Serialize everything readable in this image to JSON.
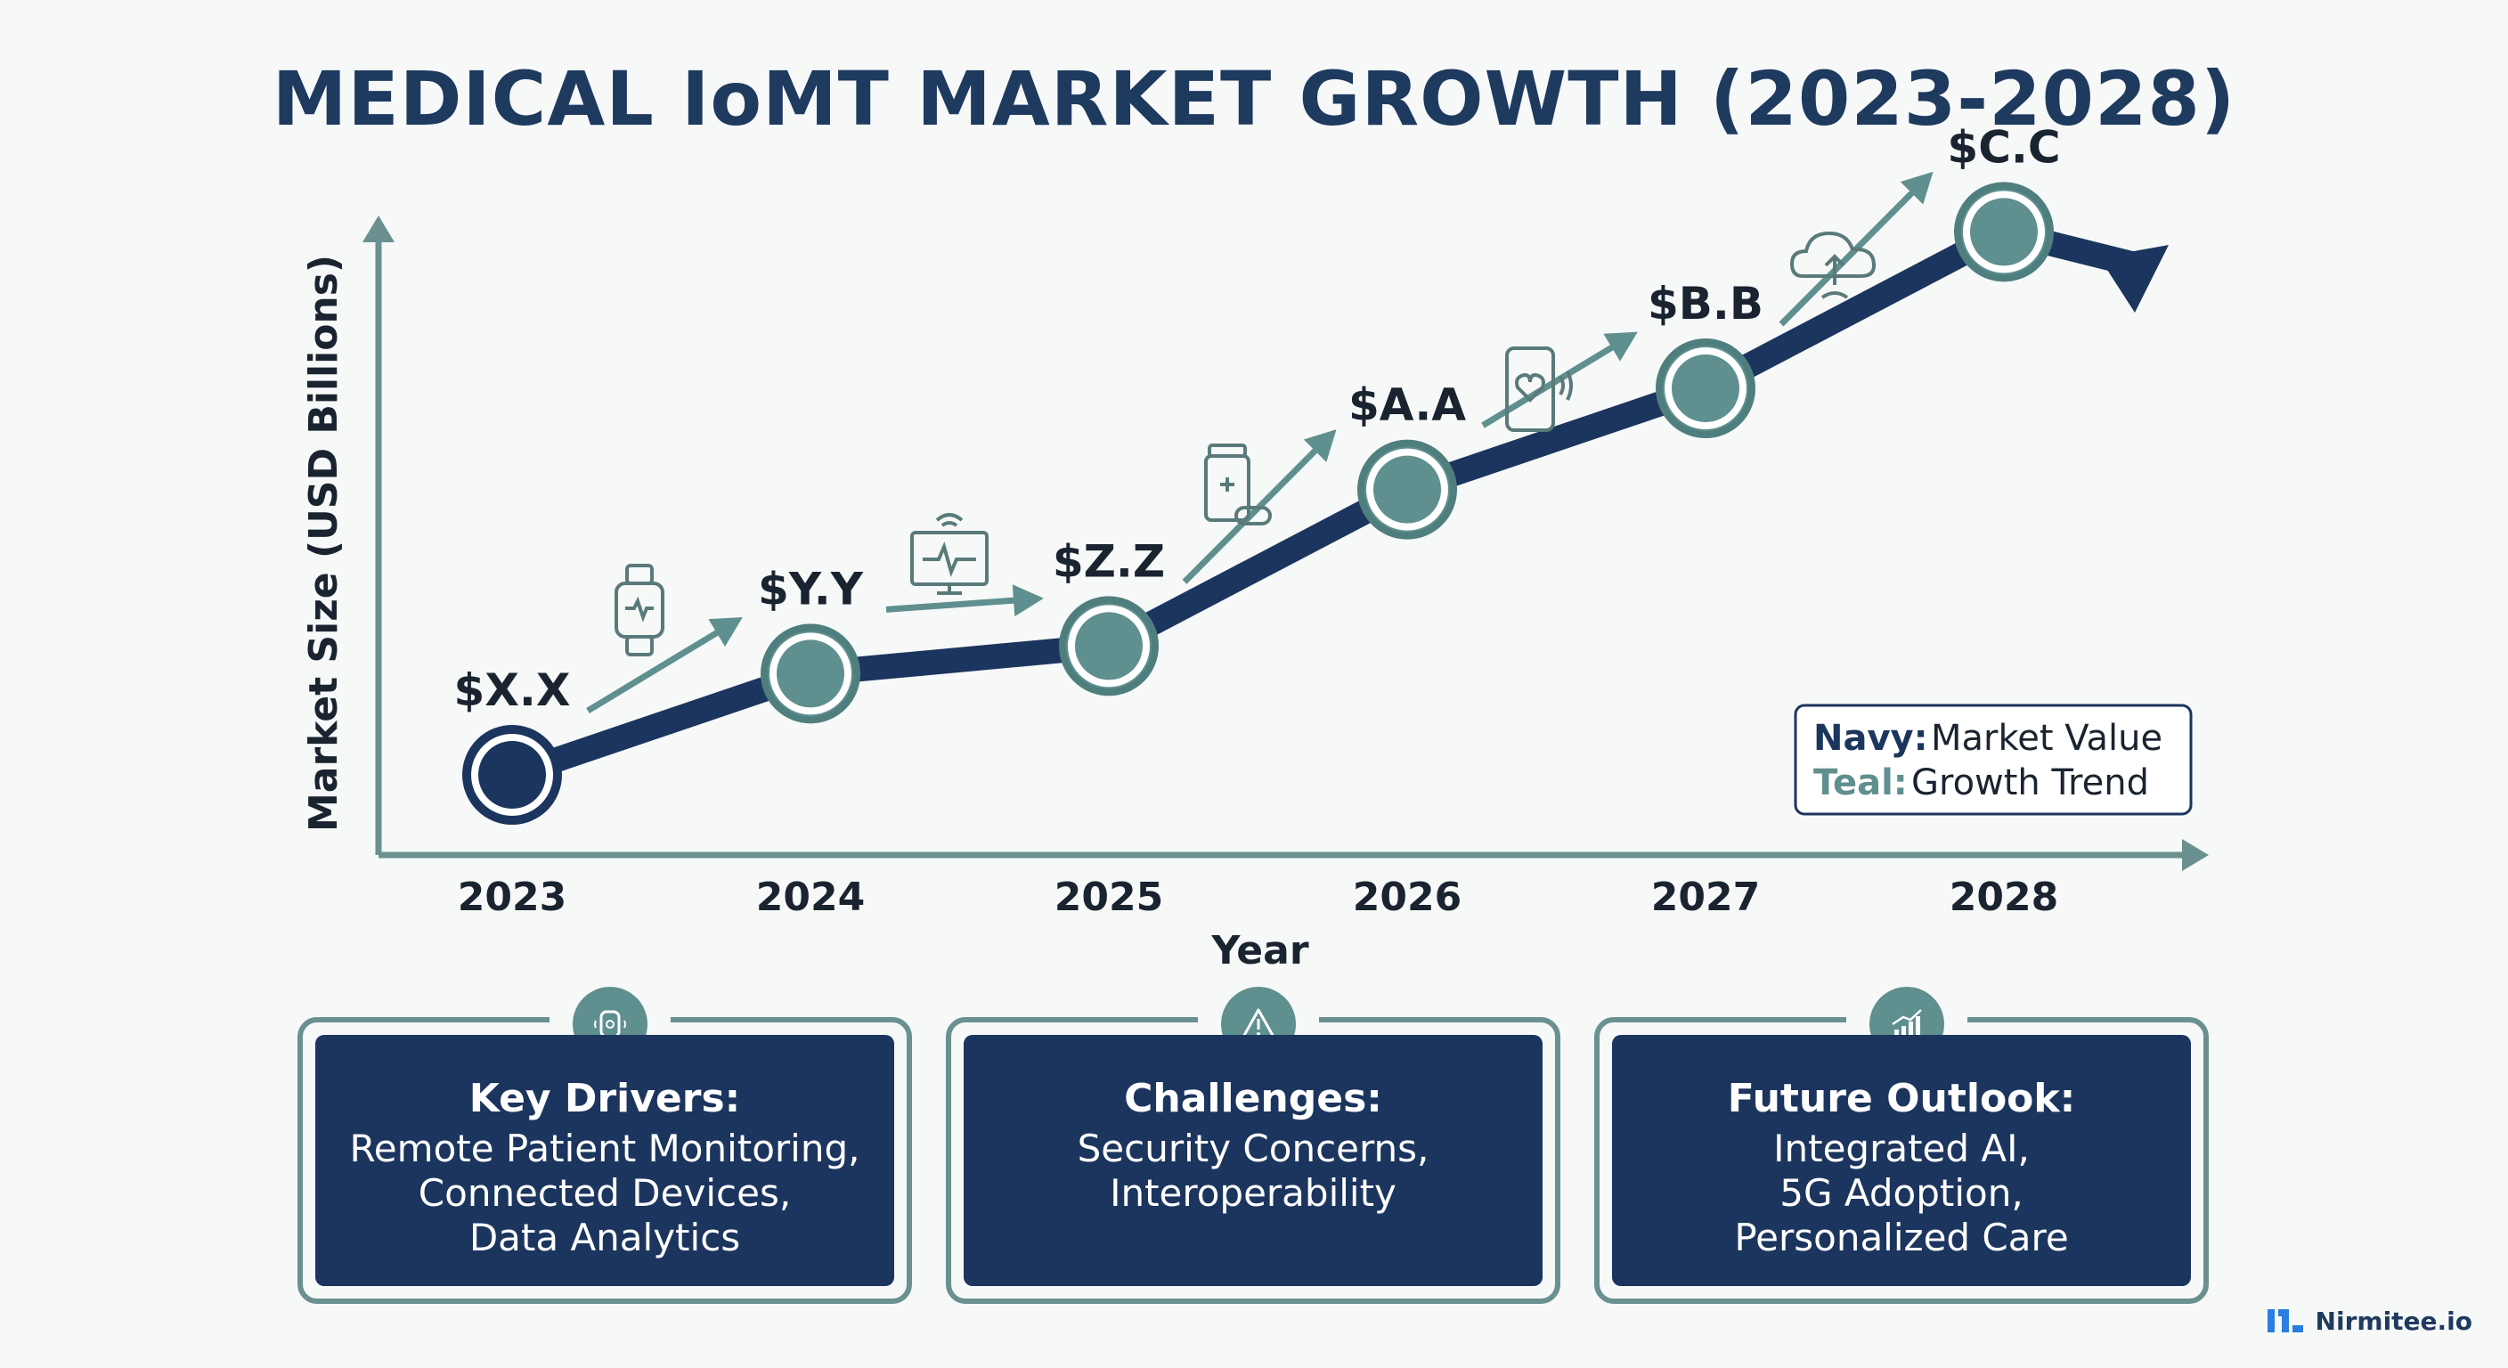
{
  "chart_data": {
    "type": "line",
    "title": "MEDICAL IoMT MARKET GROWTH (2023-2028)",
    "xlabel": "Year",
    "ylabel": "Market Size (USD Billions)",
    "categories": [
      "2023",
      "2024",
      "2025",
      "2026",
      "2027",
      "2028"
    ],
    "series": [
      {
        "name": "Market Value",
        "values": [
          1.0,
          2.1,
          2.4,
          4.1,
          5.2,
          6.9
        ],
        "labels": [
          "$X.X",
          "$Y.Y",
          "$Z.Z",
          "$A.A",
          "$B.B",
          "$C.C"
        ]
      }
    ],
    "trend_icons": [
      "smartwatch-heart-icon",
      "monitor-ecg-icon",
      "medicine-bottle-icon",
      "phone-heart-icon",
      "cloud-upload-icon"
    ],
    "legend": [
      {
        "key": "Navy:",
        "text": "Market Value",
        "color": "#1c355e"
      },
      {
        "key": "Teal:",
        "text": "Growth Trend",
        "color": "#5f8f8f"
      }
    ],
    "legend_position": "bottom-right",
    "colors": {
      "navy": "#1c355e",
      "teal": "#5f8f8f",
      "axis": "#6a9090"
    }
  },
  "cards": [
    {
      "icon": "smartwatch-icon",
      "title": "Key Drivers:",
      "lines": [
        "Remote Patient Monitoring,",
        "Connected Devices,",
        "Data Analytics"
      ]
    },
    {
      "icon": "warning-icon",
      "title": "Challenges:",
      "lines": [
        "Security Concerns,",
        "Interoperability"
      ]
    },
    {
      "icon": "growth-chart-icon",
      "title": "Future Outlook:",
      "lines": [
        "Integrated AI,",
        "5G Adoption,",
        "Personalized Care"
      ]
    }
  ],
  "brand": {
    "name": "Nirmitee.io",
    "icon": "nirmitee-logo-icon"
  }
}
